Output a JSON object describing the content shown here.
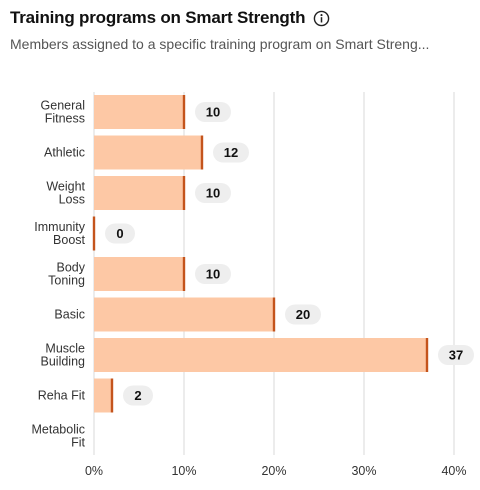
{
  "header": {
    "title": "Training programs on Smart Strength",
    "subtitle": "Members assigned to a specific training program on Smart Streng...",
    "info_icon": "info-icon"
  },
  "colors": {
    "bar_fill": "#fdc8a5",
    "bar_edge": "#c4541c",
    "value_pill": "#eeeeee",
    "grid": "#d9d9d9"
  },
  "chart_data": {
    "type": "bar",
    "orientation": "horizontal",
    "categories": [
      [
        "General",
        "Fitness"
      ],
      [
        "Athletic"
      ],
      [
        "Weight",
        "Loss"
      ],
      [
        "Immunity",
        "Boost"
      ],
      [
        "Body",
        "Toning"
      ],
      [
        "Basic"
      ],
      [
        "Muscle",
        "Building"
      ],
      [
        "Reha Fit"
      ],
      [
        "Metabolic",
        "Fit"
      ]
    ],
    "values": [
      10,
      12,
      10,
      0,
      10,
      20,
      37,
      2,
      null
    ],
    "value_labels": [
      "10",
      "12",
      "10",
      "0",
      "10",
      "20",
      "37",
      "2",
      ""
    ],
    "xlim": [
      0,
      40
    ],
    "xticks": [
      0,
      10,
      20,
      30,
      40
    ],
    "xtick_labels": [
      "0%",
      "10%",
      "20%",
      "30%",
      "40%"
    ],
    "grid": true
  }
}
